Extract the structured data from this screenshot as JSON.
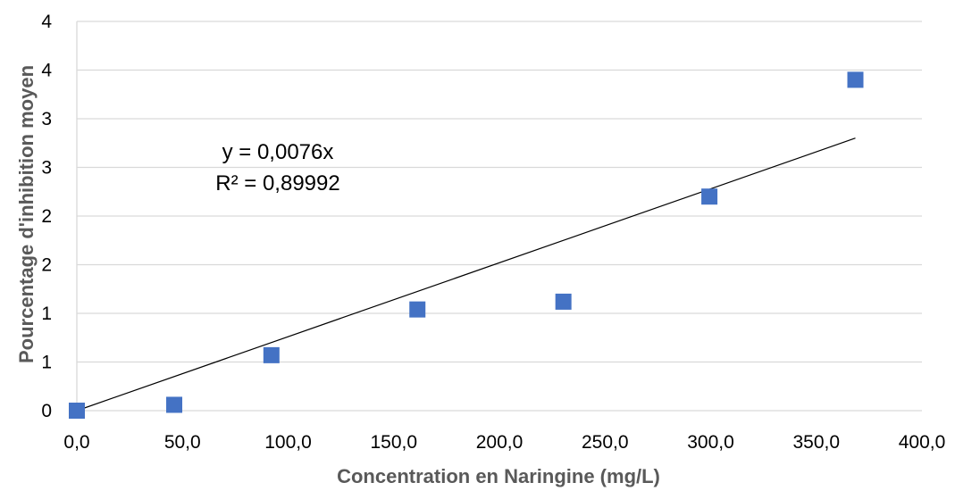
{
  "chart_data": {
    "type": "scatter",
    "xlabel": "Concentration en Naringine (mg/L)",
    "ylabel": "Pourcentage d'inhibition moyen",
    "xlim": [
      0,
      400
    ],
    "ylim": [
      0,
      4
    ],
    "x_tick_values": [
      0,
      50,
      100,
      150,
      200,
      250,
      300,
      350,
      400
    ],
    "x_tick_labels": [
      "0,0",
      "50,0",
      "100,0",
      "150,0",
      "200,0",
      "250,0",
      "300,0",
      "350,0",
      "400,0"
    ],
    "y_tick_values": [
      0,
      0.5,
      1,
      1.5,
      2,
      2.5,
      3,
      3.5,
      4
    ],
    "y_tick_labels": [
      "0",
      "1",
      "1",
      "2",
      "2",
      "3",
      "3",
      "4",
      "4"
    ],
    "grid": "horizontal",
    "series": [
      {
        "x": [
          0,
          46.1,
          92.1,
          161.2,
          230.3,
          299.4,
          368.5
        ],
        "y": [
          0.0,
          0.06,
          0.57,
          1.04,
          1.12,
          2.2,
          3.4
        ],
        "marker": "square",
        "color": "#4472C4"
      }
    ],
    "trendline": {
      "slope": 0.0076,
      "x_range": [
        0,
        368.5
      ],
      "color": "#000000",
      "equation": "y = 0,0076x",
      "r_squared": "R² = 0,89992"
    }
  }
}
